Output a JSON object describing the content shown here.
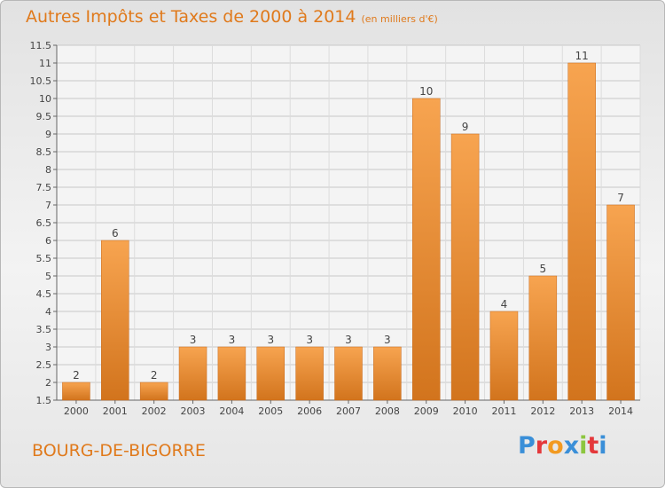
{
  "title": {
    "main": "Autres Impôts et Taxes de 2000 à 2014",
    "unit": "(en milliers d'€)"
  },
  "location": "BOURG-DE-BIGORRE",
  "brand": {
    "letters": [
      "P",
      "r",
      "o",
      "x",
      "i",
      "t",
      "i"
    ],
    "colors": [
      "#3a8fd8",
      "#e4383b",
      "#f29a21",
      "#3a8fd8",
      "#8cc63f",
      "#e4383b",
      "#3a8fd8"
    ]
  },
  "colors": {
    "bar_light": "#f7a450",
    "bar_dark": "#d2741d",
    "text": "#e07a1c",
    "grid": "#c8c8c8"
  },
  "chart_data": {
    "type": "bar",
    "title": "Autres Impôts et Taxes de 2000 à 2014",
    "subtitle": "(en milliers d'€)",
    "categories": [
      "2000",
      "2001",
      "2002",
      "2003",
      "2004",
      "2005",
      "2006",
      "2007",
      "2008",
      "2009",
      "2010",
      "2011",
      "2012",
      "2013",
      "2014"
    ],
    "values": [
      2,
      6,
      2,
      3,
      3,
      3,
      3,
      3,
      3,
      10,
      9,
      4,
      5,
      11,
      7
    ],
    "labels": [
      "2",
      "6",
      "2",
      "3",
      "3",
      "3",
      "3",
      "3",
      "3",
      "10",
      "9",
      "4",
      "5",
      "11",
      "7"
    ],
    "ylim": [
      1.5,
      11.5
    ],
    "yticks": [
      "1.5",
      "2",
      "2.5",
      "3",
      "3.5",
      "4",
      "4.5",
      "5",
      "5.5",
      "6",
      "6.5",
      "7",
      "7.5",
      "8",
      "8.5",
      "9",
      "9.5",
      "10",
      "10.5",
      "11",
      "11.5"
    ],
    "grid": true
  }
}
